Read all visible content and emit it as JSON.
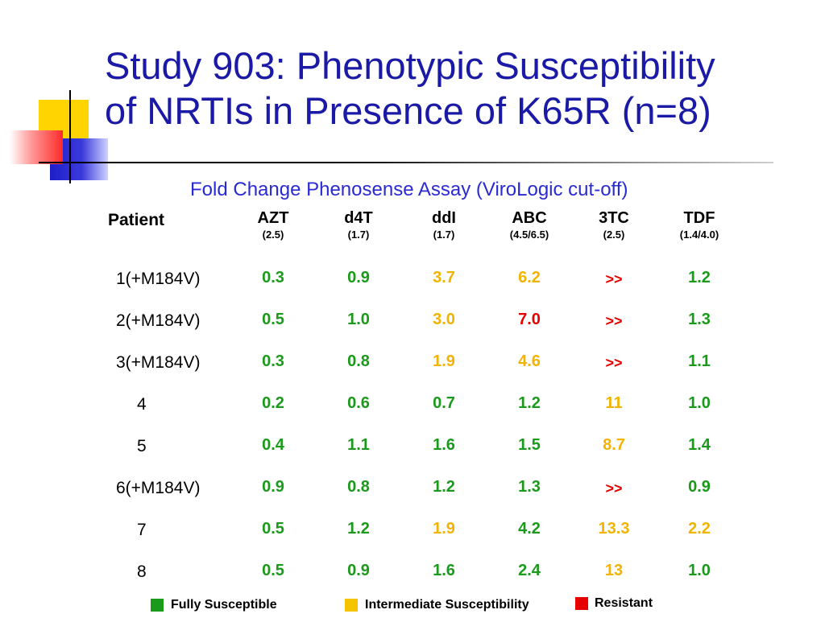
{
  "slide": {
    "title_line1": "Study 903: Phenotypic Susceptibility",
    "title_line2": "of NRTIs in Presence of K65R (n=8)",
    "subtitle": "Fold Change Phenosense Assay (ViroLogic cut-off)"
  },
  "table": {
    "patient_header": "Patient",
    "columns": [
      {
        "name": "AZT",
        "cutoff": "(2.5)"
      },
      {
        "name": "d4T",
        "cutoff": "(1.7)"
      },
      {
        "name": "ddI",
        "cutoff": "(1.7)"
      },
      {
        "name": "ABC",
        "cutoff": "(4.5/6.5)"
      },
      {
        "name": "3TC",
        "cutoff": "(2.5)"
      },
      {
        "name": "TDF",
        "cutoff": "(1.4/4.0)"
      }
    ],
    "rows": [
      {
        "patient": "1(+M184V)",
        "values": [
          "0.3",
          "0.9",
          "3.7",
          "6.2",
          ">>",
          "1.2"
        ],
        "status": [
          "g",
          "g",
          "y",
          "y",
          "r",
          "g"
        ]
      },
      {
        "patient": "2(+M184V)",
        "values": [
          "0.5",
          "1.0",
          "3.0",
          "7.0",
          ">>",
          "1.3"
        ],
        "status": [
          "g",
          "g",
          "y",
          "r",
          "r",
          "g"
        ]
      },
      {
        "patient": "3(+M184V)",
        "values": [
          "0.3",
          "0.8",
          "1.9",
          "4.6",
          ">>",
          "1.1"
        ],
        "status": [
          "g",
          "g",
          "y",
          "y",
          "r",
          "g"
        ]
      },
      {
        "patient": "4",
        "values": [
          "0.2",
          "0.6",
          "0.7",
          "1.2",
          "11",
          "1.0"
        ],
        "status": [
          "g",
          "g",
          "g",
          "g",
          "y",
          "g"
        ]
      },
      {
        "patient": "5",
        "values": [
          "0.4",
          "1.1",
          "1.6",
          "1.5",
          "8.7",
          "1.4"
        ],
        "status": [
          "g",
          "g",
          "g",
          "g",
          "y",
          "g"
        ]
      },
      {
        "patient": "6(+M184V)",
        "values": [
          "0.9",
          "0.8",
          "1.2",
          "1.3",
          ">>",
          "0.9"
        ],
        "status": [
          "g",
          "g",
          "g",
          "g",
          "r",
          "g"
        ]
      },
      {
        "patient": "7",
        "values": [
          "0.5",
          "1.2",
          "1.9",
          "4.2",
          "13.3",
          "2.2"
        ],
        "status": [
          "g",
          "g",
          "y",
          "g",
          "y",
          "y"
        ]
      },
      {
        "patient": "8",
        "values": [
          "0.5",
          "0.9",
          "1.6",
          "2.4",
          "13",
          "1.0"
        ],
        "status": [
          "g",
          "g",
          "g",
          "g",
          "y",
          "g"
        ]
      }
    ]
  },
  "legend": [
    {
      "label": "Fully Susceptible",
      "color": "#1a9a1a"
    },
    {
      "label": "Intermediate Susceptibility",
      "color": "#f5c400"
    },
    {
      "label": "Resistant",
      "color": "#e60000"
    }
  ]
}
